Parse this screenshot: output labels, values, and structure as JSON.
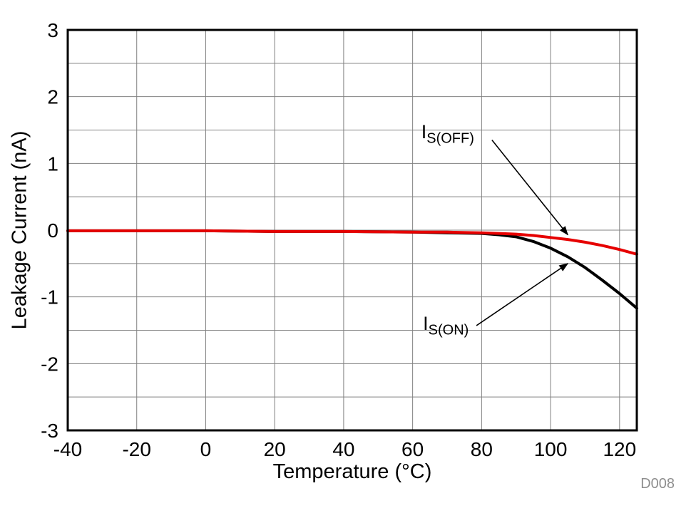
{
  "chart_data": {
    "type": "line",
    "title": "",
    "xlabel": "Temperature (°C)",
    "ylabel": "Leakage Current (nA)",
    "watermark": "D008",
    "xlim": [
      -40,
      125
    ],
    "ylim": [
      -3,
      3
    ],
    "x_ticks": [
      -40,
      -20,
      0,
      20,
      40,
      60,
      80,
      100,
      120
    ],
    "y_ticks": [
      -3,
      -2,
      -1,
      0,
      1,
      2,
      3
    ],
    "y_grid_step": 0.5,
    "grid": true,
    "legend_position": "annotated-on-plot",
    "colors": {
      "grid": "#808080",
      "frame": "#000000",
      "watermark": "#8e8e8e",
      "accent_red": "#e60000"
    },
    "series": [
      {
        "name": "IS(OFF)",
        "color": "#e60000",
        "x": [
          -40,
          -20,
          0,
          20,
          40,
          60,
          70,
          80,
          85,
          90,
          95,
          100,
          105,
          110,
          115,
          120,
          125
        ],
        "y": [
          -0.01,
          -0.01,
          -0.01,
          -0.02,
          -0.02,
          -0.03,
          -0.03,
          -0.04,
          -0.05,
          -0.06,
          -0.08,
          -0.11,
          -0.14,
          -0.18,
          -0.23,
          -0.29,
          -0.36
        ]
      },
      {
        "name": "IS(ON)",
        "color": "#000000",
        "x": [
          -40,
          -20,
          0,
          20,
          40,
          60,
          70,
          80,
          85,
          90,
          95,
          100,
          105,
          110,
          115,
          120,
          125
        ],
        "y": [
          -0.01,
          -0.01,
          -0.01,
          -0.02,
          -0.02,
          -0.03,
          -0.04,
          -0.05,
          -0.07,
          -0.1,
          -0.17,
          -0.27,
          -0.4,
          -0.56,
          -0.75,
          -0.95,
          -1.17
        ]
      }
    ],
    "annotations": [
      {
        "id": "is-off",
        "text_main": "I",
        "text_sub": "S(OFF)",
        "label_x": 62.5,
        "label_y": 1.45,
        "tail_x": 83,
        "tail_y": 1.35,
        "tip_x": 105,
        "tip_y": -0.07
      },
      {
        "id": "is-on",
        "text_main": "I",
        "text_sub": "S(ON)",
        "label_x": 63,
        "label_y": -1.42,
        "tail_x": 78.5,
        "tail_y": -1.43,
        "tip_x": 105,
        "tip_y": -0.5
      }
    ]
  }
}
